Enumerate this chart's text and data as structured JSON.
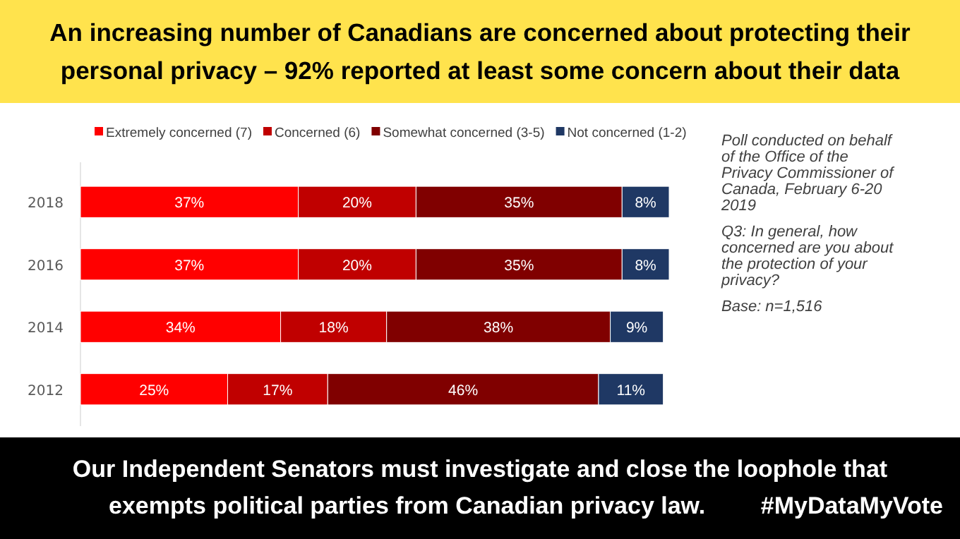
{
  "chart_data": {
    "type": "bar",
    "orientation": "horizontal",
    "stacked": true,
    "legend": "top",
    "title": "An increasing number of Canadians are concerned about protecting their personal privacy – 92% reported at least some concern about their data",
    "categories": [
      "2018",
      "2016",
      "2014",
      "2012"
    ],
    "series": [
      {
        "name": "Extremely concerned (7)",
        "color": "#ff0000",
        "values": [
          37,
          37,
          34,
          25
        ],
        "value_labels": [
          "37%",
          "37%",
          "34%",
          "25%"
        ]
      },
      {
        "name": "Concerned (6)",
        "color": "#c00000",
        "values": [
          20,
          20,
          18,
          17
        ],
        "value_labels": [
          "20%",
          "20%",
          "18%",
          "17%"
        ]
      },
      {
        "name": "Somewhat concerned (3-5)",
        "color": "#800000",
        "values": [
          35,
          35,
          38,
          46
        ],
        "value_labels": [
          "35%",
          "35%",
          "38%",
          "46%"
        ]
      },
      {
        "name": "Not concerned (1-2)",
        "color": "#1f3864",
        "values": [
          8,
          8,
          9,
          11
        ],
        "value_labels": [
          "8%",
          "8%",
          "9%",
          "11%"
        ]
      }
    ],
    "annotations": [
      "Poll conducted on behalf of the Office of the Privacy Commissioner of Canada, February 6-20 2019",
      "Q3: In general, how concerned are you about the protection of your privacy?",
      "Base: n=1,516",
      "Our Independent Senators must investigate and close the loophole that exempts political parties from Canadian privacy law.",
      "#MyDataMyVote"
    ]
  }
}
